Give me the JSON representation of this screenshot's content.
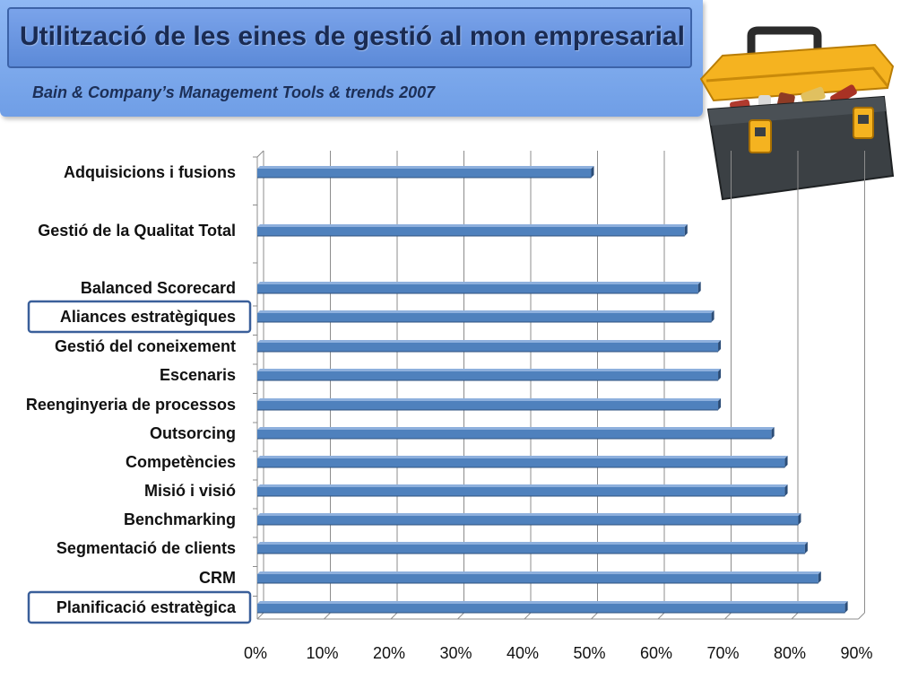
{
  "header": {
    "title": "Utilització de les eines de gestió al mon empresarial",
    "subtitle": "Bain & Company’s Management Tools & trends 2007"
  },
  "images": {
    "toolbox": "toolbox-illustration"
  },
  "colors": {
    "header_bg": "#7fa9ee",
    "bar": "#4f81bd",
    "bar_dark": "#2c4d77",
    "highlight_box": "#3a5f9a"
  },
  "chart_data": {
    "type": "bar",
    "orientation": "horizontal",
    "categories": [
      "Adquisicions i fusions",
      "Gestió de la Qualitat Total",
      "Balanced Scorecard",
      "Aliances estratègiques",
      "Gestió del coneixement",
      "Escenaris",
      "Reenginyeria de processos",
      "Outsorcing",
      "Competències",
      "Misió i visió",
      "Benchmarking",
      "Segmentació de clients",
      "CRM",
      "Planificació estratègica"
    ],
    "values": [
      50,
      64,
      66,
      68,
      69,
      69,
      69,
      77,
      79,
      79,
      81,
      82,
      84,
      88
    ],
    "highlighted": [
      "Aliances estratègiques",
      "Planificació estratègica"
    ],
    "xlim": [
      0,
      90
    ],
    "xticks": [
      "0%",
      "10%",
      "20%",
      "30%",
      "40%",
      "50%",
      "60%",
      "70%",
      "80%",
      "90%"
    ],
    "grid": true,
    "legend": "none"
  }
}
